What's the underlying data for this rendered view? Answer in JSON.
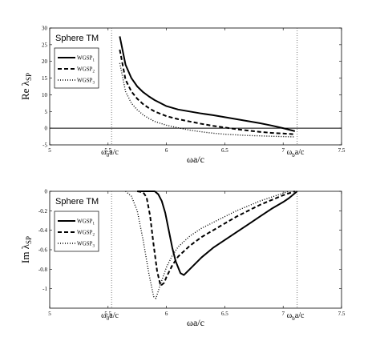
{
  "chart_data": [
    {
      "type": "line",
      "title": "Sphere TM",
      "xlabel": "ωa/c",
      "ylabel": "Re λ",
      "ylabel_sub": "SP",
      "xlim": [
        5,
        7.5
      ],
      "ylim": [
        -5,
        30
      ],
      "xticks": [
        "5",
        "5.5",
        "6",
        "6.5",
        "7",
        "7.5"
      ],
      "xtick_values": [
        5,
        5.5,
        6,
        6.5,
        7,
        7.5
      ],
      "yticks": [
        "-5",
        "0",
        "5",
        "10",
        "15",
        "20",
        "25",
        "30"
      ],
      "ytick_values": [
        -5,
        0,
        5,
        10,
        15,
        20,
        25,
        30
      ],
      "grid": false,
      "legend_position": "upper-left",
      "hline": 0,
      "vlines": [
        {
          "x": 5.53,
          "label_main": "ω",
          "label_sub": "0",
          "label_tail": "a/c"
        },
        {
          "x": 7.12,
          "label_main": "ω",
          "label_sub": "b",
          "label_tail": "a/c"
        }
      ],
      "series": [
        {
          "name": "WGSP",
          "name_sub": "1",
          "style": "solid",
          "x": [
            5.6,
            5.65,
            5.7,
            5.75,
            5.8,
            5.85,
            5.9,
            6.0,
            6.1,
            6.2,
            6.3,
            6.4,
            6.5,
            6.6,
            6.7,
            6.8,
            6.9,
            7.0,
            7.1
          ],
          "y": [
            27.5,
            19,
            15,
            12.5,
            10.8,
            9.5,
            8.4,
            6.6,
            5.6,
            5.0,
            4.4,
            3.9,
            3.3,
            2.7,
            2.1,
            1.5,
            0.8,
            0.0,
            -0.9
          ]
        },
        {
          "name": "WGSP",
          "name_sub": "2",
          "style": "dashed",
          "x": [
            5.6,
            5.65,
            5.7,
            5.75,
            5.8,
            5.85,
            5.9,
            6.0,
            6.1,
            6.2,
            6.3,
            6.4,
            6.5,
            6.6,
            6.7,
            6.8,
            6.9,
            7.0,
            7.1
          ],
          "y": [
            23.5,
            14.5,
            11,
            8.8,
            7.2,
            6.0,
            5.0,
            3.6,
            2.7,
            2.0,
            1.3,
            0.7,
            0.2,
            -0.3,
            -0.7,
            -1.1,
            -1.4,
            -1.6,
            -1.8
          ]
        },
        {
          "name": "WGSP",
          "name_sub": "3",
          "style": "dotted",
          "x": [
            5.6,
            5.65,
            5.7,
            5.75,
            5.8,
            5.85,
            5.9,
            6.0,
            6.1,
            6.2,
            6.3,
            6.4,
            6.5,
            6.6,
            6.7,
            6.8,
            6.9,
            7.0,
            7.1
          ],
          "y": [
            19.5,
            11,
            7.5,
            5.5,
            4.0,
            2.9,
            2.0,
            0.9,
            0.1,
            -0.6,
            -1.1,
            -1.5,
            -1.8,
            -2.0,
            -2.2,
            -2.3,
            -2.4,
            -2.5,
            -2.6
          ]
        }
      ]
    },
    {
      "type": "line",
      "title": "Sphere TM",
      "xlabel": "ωa/c",
      "ylabel": "Im λ",
      "ylabel_sub": "SP",
      "xlim": [
        5,
        7.5
      ],
      "ylim": [
        -1.2,
        0
      ],
      "xticks": [
        "5",
        "5.5",
        "6",
        "6.5",
        "7",
        "7.5"
      ],
      "xtick_values": [
        5,
        5.5,
        6,
        6.5,
        7,
        7.5
      ],
      "yticks": [
        "0",
        "-0.2",
        "-0.4",
        "-0.6",
        "-0.8",
        "-1"
      ],
      "ytick_values": [
        0,
        -0.2,
        -0.4,
        -0.6,
        -0.8,
        -1
      ],
      "grid": false,
      "legend_position": "upper-left",
      "vlines": [
        {
          "x": 5.53,
          "label_main": "ω",
          "label_sub": "0",
          "label_tail": "a/c"
        },
        {
          "x": 7.12,
          "label_main": "ω",
          "label_sub": "b",
          "label_tail": "a/c"
        }
      ],
      "series": [
        {
          "name": "WGSP",
          "name_sub": "1",
          "style": "solid",
          "x": [
            5.75,
            5.9,
            5.93,
            5.96,
            5.99,
            6.02,
            6.05,
            6.08,
            6.12,
            6.15,
            6.2,
            6.3,
            6.4,
            6.5,
            6.6,
            6.7,
            6.8,
            6.9,
            7.0,
            7.05,
            7.1,
            7.12
          ],
          "y": [
            0.0,
            0.0,
            -0.03,
            -0.1,
            -0.22,
            -0.4,
            -0.58,
            -0.72,
            -0.84,
            -0.86,
            -0.8,
            -0.68,
            -0.58,
            -0.5,
            -0.42,
            -0.34,
            -0.26,
            -0.18,
            -0.11,
            -0.07,
            -0.02,
            0.0
          ]
        },
        {
          "name": "WGSP",
          "name_sub": "2",
          "style": "dashed",
          "x": [
            5.75,
            5.8,
            5.83,
            5.86,
            5.89,
            5.92,
            5.95,
            5.98,
            6.0,
            6.05,
            6.1,
            6.2,
            6.3,
            6.4,
            6.5,
            6.6,
            6.7,
            6.8,
            6.9,
            7.0,
            7.05,
            7.1
          ],
          "y": [
            0.0,
            -0.01,
            -0.06,
            -0.25,
            -0.55,
            -0.82,
            -0.97,
            -0.94,
            -0.88,
            -0.76,
            -0.67,
            -0.56,
            -0.47,
            -0.4,
            -0.33,
            -0.26,
            -0.2,
            -0.14,
            -0.09,
            -0.04,
            -0.02,
            0.0
          ]
        },
        {
          "name": "WGSP",
          "name_sub": "3",
          "style": "dotted",
          "x": [
            5.65,
            5.7,
            5.75,
            5.8,
            5.85,
            5.89,
            5.91,
            5.95,
            6.0,
            6.05,
            6.1,
            6.2,
            6.3,
            6.4,
            6.5,
            6.6,
            6.7,
            6.8,
            6.9,
            7.0,
            7.05
          ],
          "y": [
            0.0,
            -0.05,
            -0.2,
            -0.5,
            -0.85,
            -1.08,
            -1.1,
            -0.95,
            -0.78,
            -0.66,
            -0.57,
            -0.46,
            -0.38,
            -0.32,
            -0.26,
            -0.2,
            -0.15,
            -0.1,
            -0.06,
            -0.02,
            0.0
          ]
        }
      ]
    }
  ]
}
